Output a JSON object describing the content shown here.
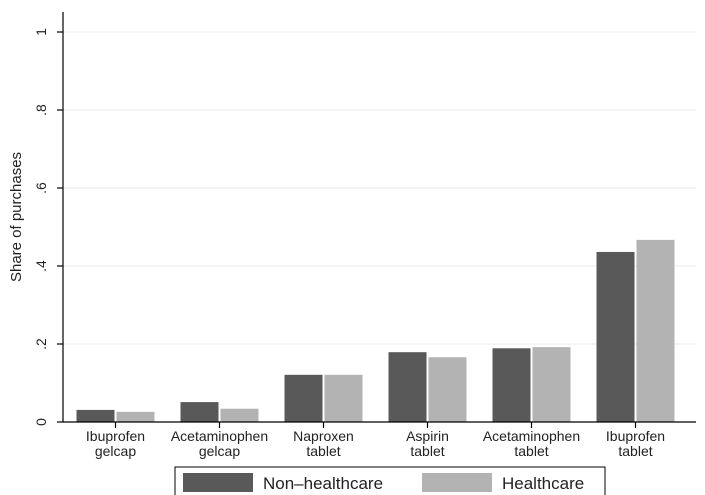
{
  "chart_data": {
    "type": "bar",
    "title": "",
    "xlabel": "",
    "ylabel": "Share of purchases",
    "ylim": [
      0,
      1
    ],
    "yticks": [
      0,
      0.2,
      0.4,
      0.6,
      0.8,
      1
    ],
    "ytick_labels": [
      "0",
      ".2",
      ".4",
      ".6",
      ".8",
      "1"
    ],
    "grid": true,
    "legend_position": "bottom",
    "categories": [
      [
        "Ibuprofen",
        "gelcap"
      ],
      [
        "Acetaminophen",
        "gelcap"
      ],
      [
        "Naproxen",
        "tablet"
      ],
      [
        "Aspirin",
        "tablet"
      ],
      [
        "Acetaminophen",
        "tablet"
      ],
      [
        "Ibuprofen",
        "tablet"
      ]
    ],
    "series": [
      {
        "name": "Non–healthcare",
        "color": "#595959",
        "values": [
          0.031,
          0.051,
          0.121,
          0.179,
          0.189,
          0.436
        ]
      },
      {
        "name": "Healthcare",
        "color": "#b3b3b3",
        "values": [
          0.026,
          0.034,
          0.121,
          0.166,
          0.192,
          0.467
        ]
      }
    ]
  }
}
